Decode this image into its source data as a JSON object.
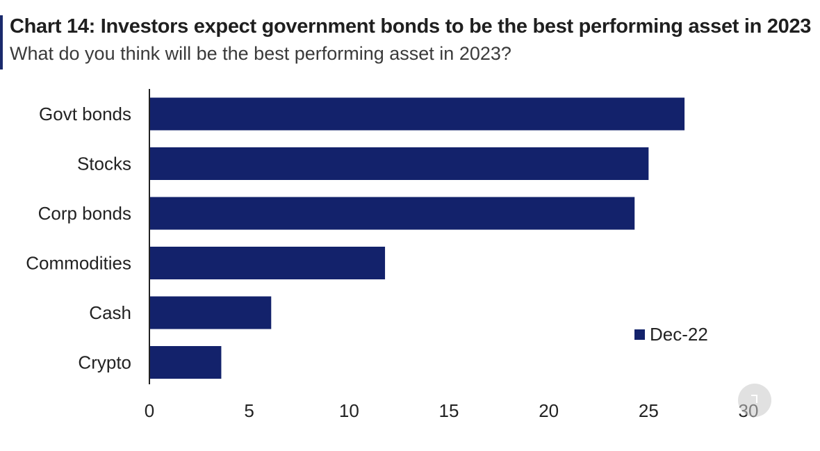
{
  "header": {
    "title": "Chart 14: Investors expect government bonds to be the best performing asset in 2023",
    "subtitle": "What do you think will be the best performing asset in 2023?"
  },
  "colors": {
    "bar": "#13226b",
    "accent": "#1a2a6c",
    "axis": "#222222"
  },
  "chart_data": {
    "type": "bar",
    "orientation": "horizontal",
    "categories": [
      "Govt bonds",
      "Stocks",
      "Corp bonds",
      "Commodities",
      "Cash",
      "Crypto"
    ],
    "series": [
      {
        "name": "Dec-22",
        "values": [
          26.8,
          25.0,
          24.3,
          11.8,
          6.1,
          3.6
        ]
      }
    ],
    "xlim": [
      0,
      30
    ],
    "xticks": [
      "0",
      "5",
      "10",
      "15",
      "20",
      "25",
      "30"
    ],
    "grid": false,
    "legend_position": "bottom-right"
  }
}
